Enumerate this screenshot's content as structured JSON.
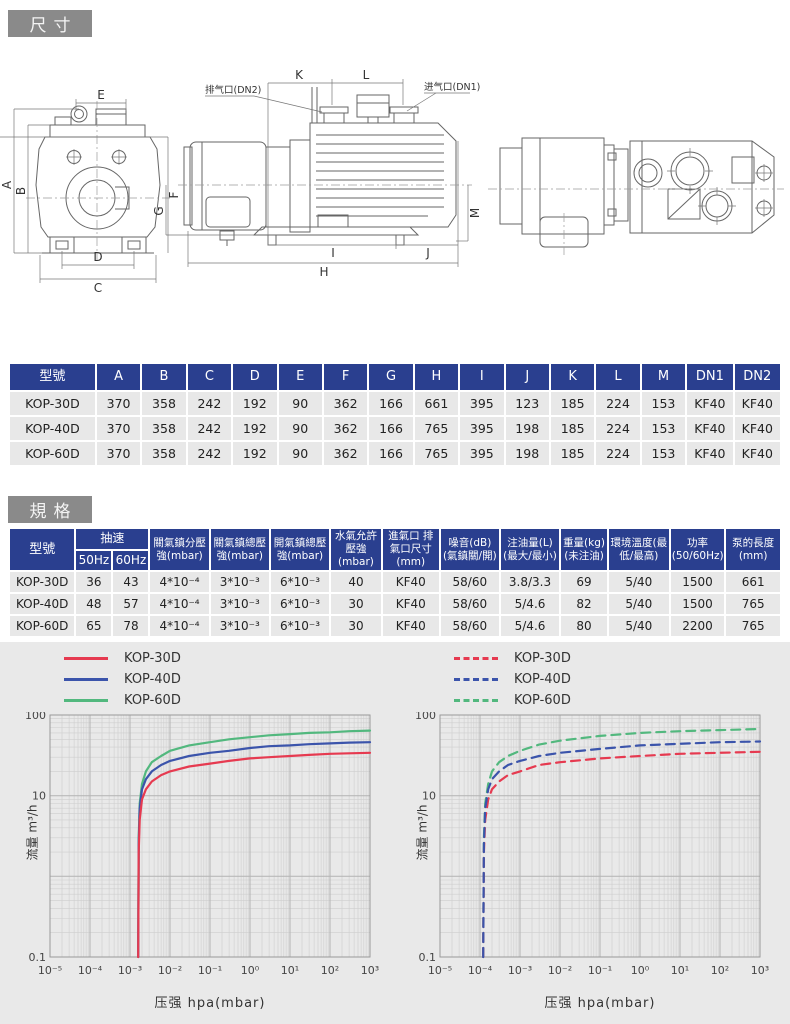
{
  "sections": {
    "dimensions_title": "尺寸",
    "specs_title": "規格"
  },
  "drawing": {
    "labels": {
      "A": "A",
      "B": "B",
      "C": "C",
      "D": "D",
      "E": "E",
      "F": "F",
      "G": "G",
      "H": "H",
      "I": "I",
      "J": "J",
      "K": "K",
      "L": "L",
      "M": "M"
    },
    "exhaust_label": "排气口(DN2)",
    "inlet_label": "进气口(DN1)"
  },
  "dim_table": {
    "headers": [
      "型號",
      "A",
      "B",
      "C",
      "D",
      "E",
      "F",
      "G",
      "H",
      "I",
      "J",
      "K",
      "L",
      "M",
      "DN1",
      "DN2"
    ],
    "rows": [
      [
        "KOP-30D",
        "370",
        "358",
        "242",
        "192",
        "90",
        "362",
        "166",
        "661",
        "395",
        "123",
        "185",
        "224",
        "153",
        "KF40",
        "KF40"
      ],
      [
        "KOP-40D",
        "370",
        "358",
        "242",
        "192",
        "90",
        "362",
        "166",
        "765",
        "395",
        "198",
        "185",
        "224",
        "153",
        "KF40",
        "KF40"
      ],
      [
        "KOP-60D",
        "370",
        "358",
        "242",
        "192",
        "90",
        "362",
        "166",
        "765",
        "395",
        "198",
        "185",
        "224",
        "153",
        "KF40",
        "KF40"
      ]
    ]
  },
  "spec_table": {
    "model_header": "型號",
    "speed_header": "抽速",
    "speed_sub": [
      "50Hz",
      "60Hz"
    ],
    "col_headers": [
      "關氣鎮分壓強(mbar)",
      "關氣鎮總壓強(mbar)",
      "開氣鎮總壓強(mbar)",
      "水氣允許壓強(mbar)",
      "進氣口 排氣口尺寸(mm)",
      "噪音(dB)(氣鎮關/開)",
      "注油量(L)(最大/最小)",
      "重量(kg)(未注油)",
      "環境溫度(最低/最高)",
      "功率(50/60Hz)",
      "泵的長度(mm)"
    ],
    "rows": [
      [
        "KOP-30D",
        "36",
        "43",
        "4*10⁻⁴",
        "3*10⁻³",
        "6*10⁻³",
        "40",
        "KF40",
        "58/60",
        "3.8/3.3",
        "69",
        "5/40",
        "1500",
        "661"
      ],
      [
        "KOP-40D",
        "48",
        "57",
        "4*10⁻⁴",
        "3*10⁻³",
        "6*10⁻³",
        "30",
        "KF40",
        "58/60",
        "5/4.6",
        "82",
        "5/40",
        "1500",
        "765"
      ],
      [
        "KOP-60D",
        "65",
        "78",
        "4*10⁻⁴",
        "3*10⁻³",
        "6*10⁻³",
        "30",
        "KF40",
        "58/60",
        "5/4.6",
        "80",
        "5/40",
        "2200",
        "765"
      ]
    ]
  },
  "colors": {
    "header_navy": "#2a3f8f",
    "banner_gray": "#8a8a8a",
    "row_gray": "#e8e8e8",
    "panel_gray": "#e9e9e9",
    "series_red": "#e63a50",
    "series_blue": "#3b54ab",
    "series_green": "#52b87e"
  },
  "chart_data": [
    {
      "type": "line",
      "title": "",
      "xlabel": "压强 hpa(mbar)",
      "ylabel": "流量 m³/h",
      "x_scale": "log",
      "y_scale": "log",
      "xlim_log": [
        -5,
        3
      ],
      "ylim_log": [
        -1,
        2
      ],
      "grid": true,
      "line_style": "solid",
      "legend_position": "top-left",
      "x_ticks": [
        "10⁻⁵",
        "10⁻⁴",
        "10⁻³",
        "10⁻²",
        "10⁻¹",
        "10⁰",
        "10¹",
        "10²",
        "10³"
      ],
      "y_ticks": [
        {
          "value": 100,
          "label": "100"
        },
        {
          "value": 10,
          "label": "10"
        },
        {
          "value": 0.1,
          "label": "0.1"
        }
      ],
      "legend": [
        {
          "label": "KOP-30D",
          "color": "#e63a50"
        },
        {
          "label": "KOP-40D",
          "color": "#3b54ab"
        },
        {
          "label": "KOP-60D",
          "color": "#52b87e"
        }
      ],
      "series": [
        {
          "name": "KOP-60D",
          "color": "#52b87e",
          "dash": false,
          "points": [
            [
              0.0016,
              0.1
            ],
            [
              0.00165,
              3
            ],
            [
              0.00175,
              8
            ],
            [
              0.002,
              14
            ],
            [
              0.0025,
              20
            ],
            [
              0.0035,
              26
            ],
            [
              0.006,
              31
            ],
            [
              0.01,
              36
            ],
            [
              0.03,
              42
            ],
            [
              0.1,
              46
            ],
            [
              0.3,
              50
            ],
            [
              1,
              53
            ],
            [
              3,
              56
            ],
            [
              10,
              58
            ],
            [
              30,
              60
            ],
            [
              100,
              61
            ],
            [
              300,
              63
            ],
            [
              1000,
              64
            ]
          ]
        },
        {
          "name": "KOP-40D",
          "color": "#3b54ab",
          "dash": false,
          "points": [
            [
              0.0016,
              0.1
            ],
            [
              0.00165,
              2.5
            ],
            [
              0.00175,
              7
            ],
            [
              0.002,
              12
            ],
            [
              0.0025,
              16
            ],
            [
              0.0035,
              20
            ],
            [
              0.006,
              24
            ],
            [
              0.01,
              27
            ],
            [
              0.03,
              31
            ],
            [
              0.1,
              34
            ],
            [
              0.3,
              36
            ],
            [
              1,
              39
            ],
            [
              3,
              41
            ],
            [
              10,
              42
            ],
            [
              30,
              43.5
            ],
            [
              100,
              44.5
            ],
            [
              300,
              45.5
            ],
            [
              1000,
              46
            ]
          ]
        },
        {
          "name": "KOP-30D",
          "color": "#e63a50",
          "dash": false,
          "points": [
            [
              0.0016,
              0.1
            ],
            [
              0.00165,
              2
            ],
            [
              0.00175,
              5
            ],
            [
              0.002,
              9
            ],
            [
              0.0025,
              12
            ],
            [
              0.0035,
              15
            ],
            [
              0.006,
              18
            ],
            [
              0.01,
              20
            ],
            [
              0.03,
              23
            ],
            [
              0.1,
              25
            ],
            [
              0.3,
              27
            ],
            [
              1,
              29
            ],
            [
              3,
              30
            ],
            [
              10,
              31
            ],
            [
              30,
              32
            ],
            [
              100,
              33
            ],
            [
              300,
              33.5
            ],
            [
              1000,
              34
            ]
          ]
        }
      ]
    },
    {
      "type": "line",
      "title": "",
      "xlabel": "压强 hpa(mbar)",
      "ylabel": "流量 m³/h",
      "x_scale": "log",
      "y_scale": "log",
      "xlim_log": [
        -5,
        3
      ],
      "ylim_log": [
        -1,
        2
      ],
      "grid": true,
      "line_style": "dashed",
      "legend_position": "top-left",
      "x_ticks": [
        "10⁻⁵",
        "10⁻⁴",
        "10⁻³",
        "10⁻²",
        "10⁻¹",
        "10⁰",
        "10¹",
        "10²",
        "10³"
      ],
      "y_ticks": [
        {
          "value": 100,
          "label": "100"
        },
        {
          "value": 10,
          "label": "10"
        },
        {
          "value": 0.1,
          "label": "0.1"
        }
      ],
      "legend": [
        {
          "label": "KOP-30D",
          "color": "#e63a50"
        },
        {
          "label": "KOP-40D",
          "color": "#3b54ab"
        },
        {
          "label": "KOP-60D",
          "color": "#52b87e"
        }
      ],
      "series": [
        {
          "name": "KOP-60D",
          "color": "#52b87e",
          "dash": true,
          "points": [
            [
              0.00012,
              0.1
            ],
            [
              0.000125,
              3
            ],
            [
              0.000135,
              8
            ],
            [
              0.00016,
              14
            ],
            [
              0.0002,
              20
            ],
            [
              0.0003,
              26
            ],
            [
              0.0005,
              31
            ],
            [
              0.001,
              36
            ],
            [
              0.003,
              43
            ],
            [
              0.01,
              48
            ],
            [
              0.1,
              55
            ],
            [
              1,
              60
            ],
            [
              10,
              63
            ],
            [
              100,
              65
            ],
            [
              1000,
              67
            ]
          ]
        },
        {
          "name": "KOP-30D",
          "color": "#e63a50",
          "dash": true,
          "points": [
            [
              0.00012,
              0.1
            ],
            [
              0.000125,
              2
            ],
            [
              0.000135,
              5
            ],
            [
              0.00016,
              9
            ],
            [
              0.0002,
              12
            ],
            [
              0.0003,
              15
            ],
            [
              0.0005,
              18
            ],
            [
              0.001,
              20
            ],
            [
              0.003,
              24
            ],
            [
              0.01,
              26
            ],
            [
              0.1,
              29
            ],
            [
              1,
              31
            ],
            [
              10,
              33
            ],
            [
              100,
              34
            ],
            [
              1000,
              35
            ]
          ]
        },
        {
          "name": "KOP-40D",
          "color": "#3b54ab",
          "dash": true,
          "points": [
            [
              0.00012,
              0.1
            ],
            [
              0.000125,
              2.5
            ],
            [
              0.000135,
              7
            ],
            [
              0.00016,
              12
            ],
            [
              0.0002,
              16
            ],
            [
              0.0003,
              20
            ],
            [
              0.0005,
              24
            ],
            [
              0.001,
              27
            ],
            [
              0.003,
              31
            ],
            [
              0.01,
              34
            ],
            [
              0.1,
              38
            ],
            [
              1,
              42
            ],
            [
              10,
              44
            ],
            [
              100,
              46
            ],
            [
              1000,
              47
            ]
          ]
        }
      ]
    }
  ]
}
